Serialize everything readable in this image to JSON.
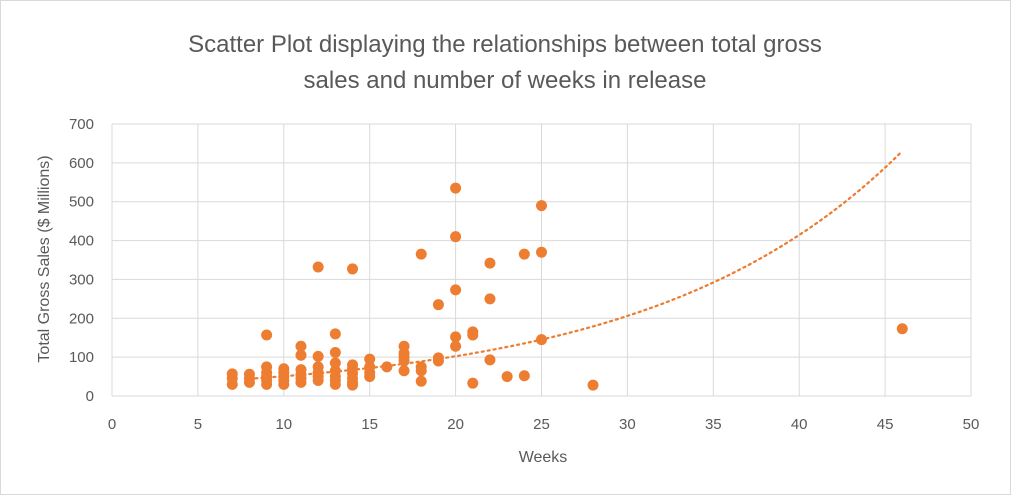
{
  "chart_data": {
    "type": "scatter",
    "title": "Scatter Plot displaying the relationships between total gross sales and number of weeks in release",
    "title_lines": [
      "Scatter Plot displaying the relationships between total gross",
      "sales and number of weeks in release"
    ],
    "xlabel": "Weeks",
    "ylabel": "Total Gross Sales ($ Millions)",
    "xlim": [
      0,
      50
    ],
    "ylim": [
      0,
      700
    ],
    "x_ticks": [
      0,
      5,
      10,
      15,
      20,
      25,
      30,
      35,
      40,
      45,
      50
    ],
    "y_ticks": [
      0,
      100,
      200,
      300,
      400,
      500,
      600,
      700
    ],
    "grid": true,
    "marker_color": "#ED7D31",
    "gridline_color": "#d9d9d9",
    "trendline": {
      "type": "exponential",
      "style": "dotted",
      "color": "#ED7D31",
      "x_range": [
        8,
        46
      ],
      "a": 25.3,
      "b": 0.0699
    },
    "series": [
      {
        "points": [
          [
            7,
            57
          ],
          [
            7,
            30
          ],
          [
            7,
            45
          ],
          [
            8,
            56
          ],
          [
            8,
            35
          ],
          [
            8,
            45
          ],
          [
            9,
            157
          ],
          [
            9,
            75
          ],
          [
            9,
            60
          ],
          [
            9,
            50
          ],
          [
            9,
            40
          ],
          [
            9,
            30
          ],
          [
            10,
            70
          ],
          [
            10,
            60
          ],
          [
            10,
            50
          ],
          [
            10,
            40
          ],
          [
            10,
            30
          ],
          [
            11,
            128
          ],
          [
            11,
            105
          ],
          [
            11,
            68
          ],
          [
            11,
            55
          ],
          [
            11,
            45
          ],
          [
            11,
            35
          ],
          [
            12,
            332
          ],
          [
            12,
            102
          ],
          [
            12,
            75
          ],
          [
            12,
            60
          ],
          [
            12,
            50
          ],
          [
            12,
            40
          ],
          [
            13,
            160
          ],
          [
            13,
            112
          ],
          [
            13,
            85
          ],
          [
            13,
            65
          ],
          [
            13,
            50
          ],
          [
            13,
            40
          ],
          [
            13,
            30
          ],
          [
            14,
            327
          ],
          [
            14,
            80
          ],
          [
            14,
            70
          ],
          [
            14,
            58
          ],
          [
            14,
            45
          ],
          [
            14,
            35
          ],
          [
            14,
            28
          ],
          [
            15,
            95
          ],
          [
            15,
            75
          ],
          [
            15,
            60
          ],
          [
            15,
            50
          ],
          [
            16,
            75
          ],
          [
            17,
            128
          ],
          [
            17,
            110
          ],
          [
            17,
            100
          ],
          [
            17,
            90
          ],
          [
            17,
            65
          ],
          [
            18,
            365
          ],
          [
            18,
            75
          ],
          [
            18,
            65
          ],
          [
            18,
            38
          ],
          [
            19,
            235
          ],
          [
            19,
            98
          ],
          [
            19,
            90
          ],
          [
            20,
            535
          ],
          [
            20,
            410
          ],
          [
            20,
            273
          ],
          [
            20,
            152
          ],
          [
            20,
            128
          ],
          [
            21,
            165
          ],
          [
            21,
            157
          ],
          [
            21,
            33
          ],
          [
            22,
            342
          ],
          [
            22,
            250
          ],
          [
            22,
            93
          ],
          [
            23,
            50
          ],
          [
            24,
            365
          ],
          [
            24,
            52
          ],
          [
            25,
            490
          ],
          [
            25,
            370
          ],
          [
            25,
            145
          ],
          [
            28,
            28
          ],
          [
            46,
            173
          ]
        ]
      }
    ]
  }
}
